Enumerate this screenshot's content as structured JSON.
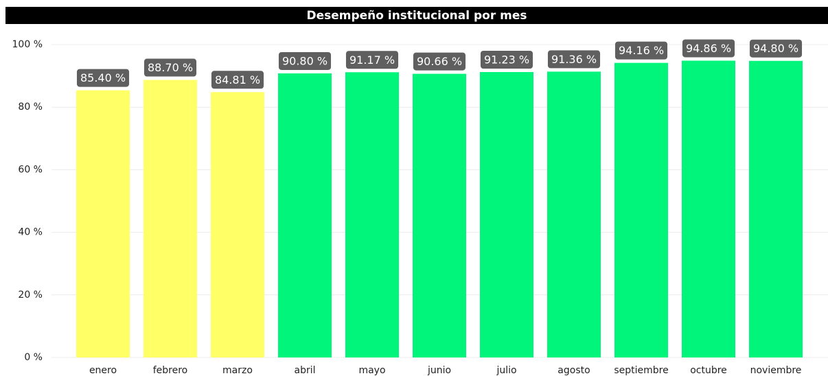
{
  "chart_data": {
    "type": "bar",
    "title": "Desempeño institucional por mes",
    "categories": [
      "enero",
      "febrero",
      "marzo",
      "abril",
      "mayo",
      "junio",
      "julio",
      "agosto",
      "septiembre",
      "octubre",
      "noviembre"
    ],
    "values": [
      85.4,
      88.7,
      84.81,
      90.8,
      91.17,
      90.66,
      91.23,
      91.36,
      94.16,
      94.86,
      94.8
    ],
    "value_labels": [
      "85.40 %",
      "88.70 %",
      "84.81 %",
      "90.80 %",
      "91.17 %",
      "90.66 %",
      "91.23 %",
      "91.36 %",
      "94.16 %",
      "94.86 %",
      "94.80 %"
    ],
    "colors": [
      "#ffff66",
      "#ffff66",
      "#ffff66",
      "#00f57a",
      "#00f57a",
      "#00f57a",
      "#00f57a",
      "#00f57a",
      "#00f57a",
      "#00f57a",
      "#00f57a"
    ],
    "ylim": [
      0,
      100
    ],
    "yticks": [
      {
        "value": 0,
        "label": "0 %"
      },
      {
        "value": 20,
        "label": "20 %"
      },
      {
        "value": 40,
        "label": "40 %"
      },
      {
        "value": 60,
        "label": "60 %"
      },
      {
        "value": 80,
        "label": "80 %"
      },
      {
        "value": 100,
        "label": "100 %"
      }
    ],
    "grid": true
  }
}
